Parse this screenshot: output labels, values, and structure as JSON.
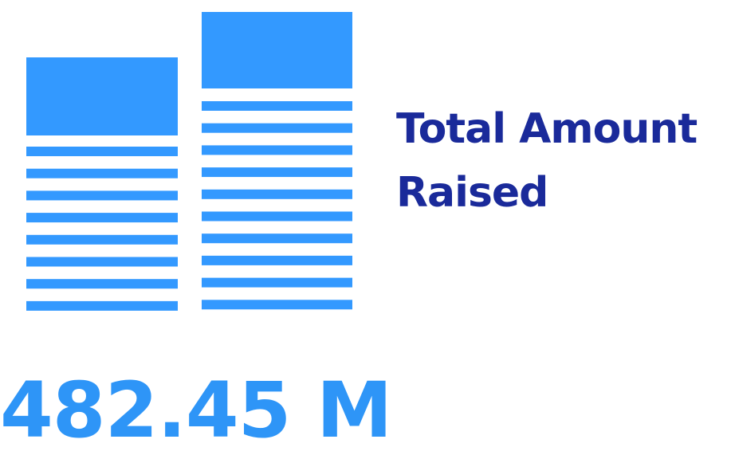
{
  "kpi": {
    "title_line1": "Total Amount",
    "title_line2": "Raised",
    "value": "482.45 M"
  },
  "icon": {
    "name": "stacked-coins-icon",
    "color": "#3399ff"
  },
  "colors": {
    "title": "#1a2a9a",
    "value": "#2e95f7"
  }
}
